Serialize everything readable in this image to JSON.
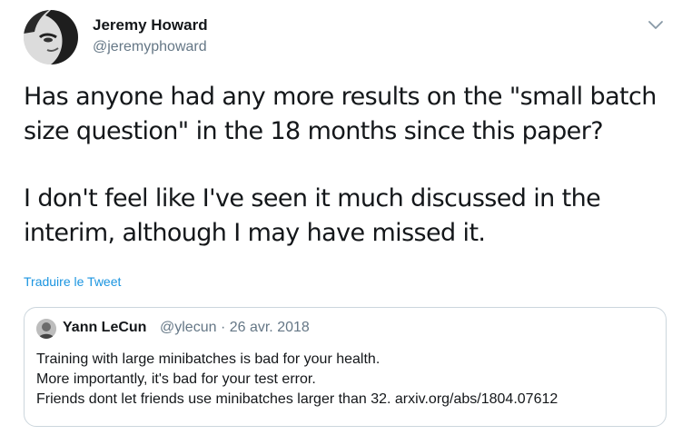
{
  "author": {
    "name": "Jeremy Howard",
    "handle": "@jeremyphoward",
    "avatar_icon": "profile-photo"
  },
  "menu_icon": "chevron-down-icon",
  "tweet_text": {
    "paragraph1": [
      "Has anyone had any more results on the \"small batch",
      "size question\" in the 18 months since this paper?"
    ],
    "paragraph2": [
      "I don't feel like I've seen it much discussed in the",
      "interim, although I may have missed it."
    ]
  },
  "translate_link": "Traduire le Tweet",
  "quoted_tweet": {
    "name": "Yann LeCun",
    "handle_date": "@ylecun · 26 avr. 2018",
    "lines": [
      "Training with large minibatches is bad for your health.",
      "More importantly, it's bad for your test error.",
      "Friends dont let friends use minibatches larger than 32. arxiv.org/abs/1804.07612"
    ]
  },
  "colors": {
    "text": "#14171a",
    "secondary": "#657786",
    "link": "#1b95e0",
    "border": "#ccd6dd"
  }
}
